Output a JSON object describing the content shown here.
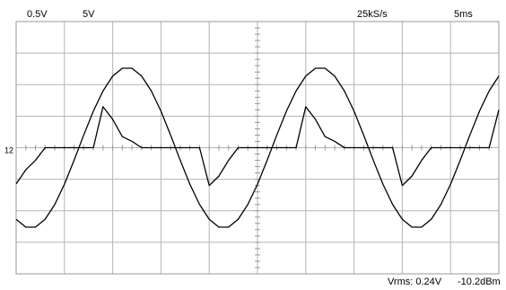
{
  "chart_data": {
    "type": "line",
    "annotations": [
      "0.5V",
      "5V",
      "25kS/s",
      "5ms",
      "12",
      "Vrms: 0.24V",
      "-10.2dBm"
    ],
    "x": [
      0,
      0.2,
      0.4,
      0.6,
      0.8,
      1,
      1.2,
      1.4,
      1.6,
      1.8,
      2,
      2.2,
      2.4,
      2.6,
      2.8,
      3,
      3.2,
      3.4,
      3.6,
      3.8,
      4,
      4.2,
      4.4,
      4.6,
      4.8,
      5,
      5.2,
      5.4,
      5.6,
      5.8,
      6,
      6.2,
      6.4,
      6.6,
      6.8,
      7,
      7.2,
      7.4,
      7.6,
      7.8,
      8,
      8.2,
      8.4,
      8.6,
      8.8,
      9,
      9.2,
      9.4,
      9.6,
      9.8,
      10
    ],
    "series": [
      {
        "color": "#000000",
        "values": [
          -2.27,
          -2.52,
          -2.52,
          -2.27,
          -1.8,
          -1.16,
          -0.4,
          0.4,
          1.16,
          1.8,
          2.27,
          2.52,
          2.52,
          2.27,
          1.8,
          1.16,
          0.4,
          -0.4,
          -1.16,
          -1.8,
          -2.27,
          -2.52,
          -2.52,
          -2.27,
          -1.8,
          -1.16,
          -0.4,
          0.4,
          1.16,
          1.8,
          2.27,
          2.52,
          2.52,
          2.27,
          1.8,
          1.16,
          0.4,
          -0.4,
          -1.16,
          -1.8,
          -2.27,
          -2.52,
          -2.52,
          -2.27,
          -1.8,
          -1.16,
          -0.4,
          0.4,
          1.16,
          1.8,
          2.27
        ]
      },
      {
        "color": "#000000",
        "values": [
          -1.15,
          -0.7,
          -0.4,
          0,
          0,
          0,
          0,
          0,
          0,
          1.3,
          0.9,
          0.35,
          0.2,
          0,
          0,
          0,
          0,
          0,
          0,
          0,
          -1.2,
          -0.9,
          -0.4,
          0,
          0,
          0,
          0,
          0,
          0,
          0,
          1.3,
          0.9,
          0.35,
          0.2,
          0,
          0,
          0,
          0,
          0,
          0,
          -1.2,
          -0.9,
          -0.4,
          0,
          0,
          0,
          0,
          0,
          0,
          0,
          1.2
        ]
      }
    ],
    "xlim": [
      0,
      10
    ],
    "ylim": [
      -4,
      4
    ],
    "xticks": [
      0,
      1,
      2,
      3,
      4,
      5,
      6,
      7,
      8,
      9,
      10
    ],
    "yticks": [
      -4,
      -3,
      -2,
      -1,
      0,
      1,
      2,
      3,
      4
    ],
    "grid": true
  }
}
